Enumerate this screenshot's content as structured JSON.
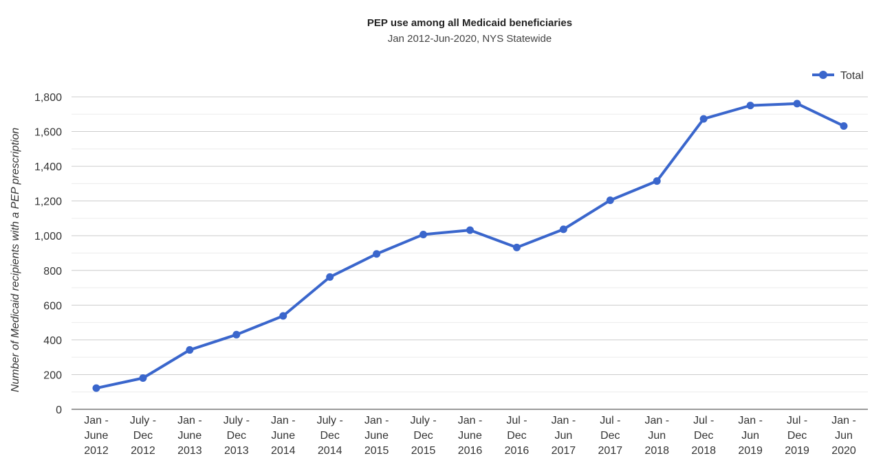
{
  "chart_data": {
    "type": "line",
    "title": "PEP use among all Medicaid beneficiaries",
    "subtitle": "Jan 2012-Jun-2020, NYS Statewide",
    "ylabel": "Number of Medicaid recipients with a PEP prescription",
    "xlabel": "",
    "ylim": [
      0,
      1800
    ],
    "yticks": [
      "0",
      "200",
      "400",
      "600",
      "800",
      "1,000",
      "1,200",
      "1,400",
      "1,600",
      "1,800"
    ],
    "ytick_values": [
      0,
      200,
      400,
      600,
      800,
      1000,
      1200,
      1400,
      1600,
      1800
    ],
    "grid": true,
    "legend_position": "top-right",
    "categories": [
      [
        "Jan -",
        "June",
        "2012"
      ],
      [
        "July -",
        "Dec",
        "2012"
      ],
      [
        "Jan -",
        "June",
        "2013"
      ],
      [
        "July -",
        "Dec",
        "2013"
      ],
      [
        "Jan -",
        "June",
        "2014"
      ],
      [
        "July -",
        "Dec",
        "2014"
      ],
      [
        "Jan -",
        "June",
        "2015"
      ],
      [
        "July -",
        "Dec",
        "2015"
      ],
      [
        "Jan -",
        "June",
        "2016"
      ],
      [
        "Jul -",
        "Dec",
        "2016"
      ],
      [
        "Jan -",
        "Jun",
        "2017"
      ],
      [
        "Jul -",
        "Dec",
        "2017"
      ],
      [
        "Jan -",
        "Jun",
        "2018"
      ],
      [
        "Jul -",
        "Dec",
        "2018"
      ],
      [
        "Jan -",
        "Jun",
        "2019"
      ],
      [
        "Jul -",
        "Dec",
        "2019"
      ],
      [
        "Jan -",
        "Jun",
        "2020"
      ]
    ],
    "series": [
      {
        "name": "Total",
        "color": "#3a66cc",
        "values": [
          122,
          180,
          342,
          430,
          538,
          762,
          895,
          1007,
          1032,
          932,
          1037,
          1204,
          1315,
          1673,
          1750,
          1761,
          1632
        ]
      }
    ]
  }
}
